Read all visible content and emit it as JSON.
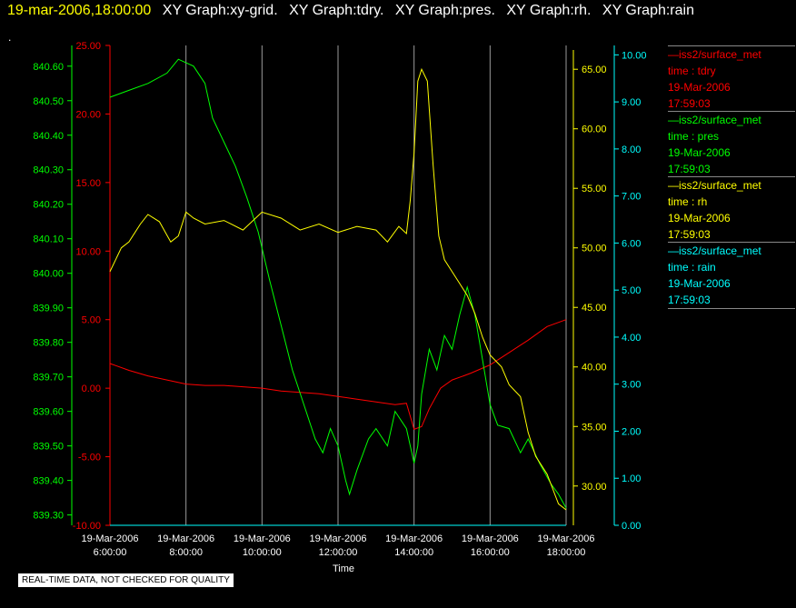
{
  "header": {
    "datetime": "19-mar-2006,18:00:00",
    "graphs": [
      "XY Graph:xy-grid.",
      "XY Graph:tdry.",
      "XY Graph:pres.",
      "XY Graph:rh.",
      "XY Graph:rain"
    ],
    "dot": "."
  },
  "legend": [
    {
      "source": "iss2/surface_met",
      "param": "time : tdry",
      "date": "19-Mar-2006",
      "time": "17:59:03",
      "color": "#ff0000"
    },
    {
      "source": "iss2/surface_met",
      "param": "time : pres",
      "date": "19-Mar-2006",
      "time": "17:59:03",
      "color": "#00ff00"
    },
    {
      "source": "iss2/surface_met",
      "param": "time : rh",
      "date": "19-Mar-2006",
      "time": "17:59:03",
      "color": "#ffff00"
    },
    {
      "source": "iss2/surface_met",
      "param": "time : rain",
      "date": "19-Mar-2006",
      "time": "17:59:03",
      "color": "#00ffff"
    }
  ],
  "notice": "REAL-TIME DATA, NOT CHECKED FOR QUALITY",
  "chart_data": {
    "type": "line",
    "xlabel": "Time",
    "x_ticks": [
      [
        "19-Mar-2006",
        "6:00:00"
      ],
      [
        "19-Mar-2006",
        "8:00:00"
      ],
      [
        "19-Mar-2006",
        "10:00:00"
      ],
      [
        "19-Mar-2006",
        "12:00:00"
      ],
      [
        "19-Mar-2006",
        "14:00:00"
      ],
      [
        "19-Mar-2006",
        "16:00:00"
      ],
      [
        "19-Mar-2006",
        "18:00:00"
      ]
    ],
    "xlim_hours": [
      6,
      18
    ],
    "grid": "vertical",
    "axes": {
      "tdry": {
        "color": "#ff0000",
        "ylim": [
          -10,
          25
        ],
        "ticks": [
          "-10.00",
          "-5.00",
          "0.00",
          "5.00",
          "10.00",
          "15.00",
          "20.00",
          "25.00"
        ]
      },
      "pres": {
        "color": "#00ff00",
        "ylim": [
          839.27,
          840.66
        ],
        "ticks": [
          "839.30",
          "839.40",
          "839.50",
          "839.60",
          "839.70",
          "839.80",
          "839.90",
          "840.00",
          "840.10",
          "840.20",
          "840.30",
          "840.40",
          "840.50",
          "840.60"
        ]
      },
      "rh": {
        "color": "#ffff00",
        "ylim": [
          26.7,
          67.0
        ],
        "ticks": [
          "30.00",
          "35.00",
          "40.00",
          "45.00",
          "50.00",
          "55.00",
          "60.00",
          "65.00"
        ]
      },
      "rain": {
        "color": "#00ffff",
        "ylim": [
          0,
          10.2
        ],
        "ticks": [
          "0.00",
          "1.00",
          "2.00",
          "3.00",
          "4.00",
          "5.00",
          "6.00",
          "7.00",
          "8.00",
          "9.00",
          "10.00"
        ]
      }
    },
    "series": [
      {
        "key": "tdry",
        "color": "#ff0000",
        "points": [
          [
            6.0,
            1.8
          ],
          [
            6.5,
            1.3
          ],
          [
            7.0,
            0.9
          ],
          [
            7.5,
            0.6
          ],
          [
            8.0,
            0.3
          ],
          [
            8.5,
            0.2
          ],
          [
            9.0,
            0.2
          ],
          [
            9.5,
            0.1
          ],
          [
            10.0,
            0.0
          ],
          [
            10.5,
            -0.2
          ],
          [
            11.0,
            -0.3
          ],
          [
            11.5,
            -0.4
          ],
          [
            12.0,
            -0.6
          ],
          [
            12.5,
            -0.8
          ],
          [
            13.0,
            -1.0
          ],
          [
            13.5,
            -1.2
          ],
          [
            13.8,
            -1.1
          ],
          [
            14.0,
            -3.0
          ],
          [
            14.2,
            -2.8
          ],
          [
            14.4,
            -1.5
          ],
          [
            14.7,
            0.0
          ],
          [
            15.0,
            0.6
          ],
          [
            15.3,
            0.9
          ],
          [
            15.5,
            1.1
          ],
          [
            16.0,
            1.7
          ],
          [
            16.5,
            2.6
          ],
          [
            17.0,
            3.5
          ],
          [
            17.5,
            4.5
          ],
          [
            18.0,
            5.0
          ]
        ]
      },
      {
        "key": "pres",
        "color": "#00ff00",
        "points": [
          [
            6.0,
            840.51
          ],
          [
            6.5,
            840.53
          ],
          [
            7.0,
            840.55
          ],
          [
            7.5,
            840.58
          ],
          [
            7.8,
            840.62
          ],
          [
            8.2,
            840.6
          ],
          [
            8.5,
            840.55
          ],
          [
            8.7,
            840.45
          ],
          [
            9.0,
            840.38
          ],
          [
            9.3,
            840.31
          ],
          [
            9.6,
            840.22
          ],
          [
            9.9,
            840.12
          ],
          [
            10.2,
            839.98
          ],
          [
            10.5,
            839.85
          ],
          [
            10.8,
            839.72
          ],
          [
            11.1,
            839.62
          ],
          [
            11.4,
            839.52
          ],
          [
            11.6,
            839.48
          ],
          [
            11.8,
            839.55
          ],
          [
            12.0,
            839.5
          ],
          [
            12.2,
            839.4
          ],
          [
            12.3,
            839.36
          ],
          [
            12.5,
            839.43
          ],
          [
            12.8,
            839.52
          ],
          [
            13.0,
            839.55
          ],
          [
            13.3,
            839.5
          ],
          [
            13.5,
            839.6
          ],
          [
            13.8,
            839.55
          ],
          [
            14.0,
            839.45
          ],
          [
            14.1,
            839.5
          ],
          [
            14.2,
            839.65
          ],
          [
            14.4,
            839.78
          ],
          [
            14.6,
            839.72
          ],
          [
            14.8,
            839.82
          ],
          [
            15.0,
            839.78
          ],
          [
            15.2,
            839.88
          ],
          [
            15.4,
            839.96
          ],
          [
            15.6,
            839.88
          ],
          [
            15.8,
            839.75
          ],
          [
            16.0,
            839.62
          ],
          [
            16.2,
            839.56
          ],
          [
            16.5,
            839.55
          ],
          [
            16.8,
            839.48
          ],
          [
            17.0,
            839.52
          ],
          [
            17.3,
            839.45
          ],
          [
            17.6,
            839.39
          ],
          [
            17.8,
            839.36
          ],
          [
            18.0,
            839.32
          ]
        ]
      },
      {
        "key": "rh",
        "color": "#ffff00",
        "points": [
          [
            6.0,
            48.0
          ],
          [
            6.3,
            50.0
          ],
          [
            6.5,
            50.5
          ],
          [
            6.8,
            52.0
          ],
          [
            7.0,
            52.8
          ],
          [
            7.3,
            52.2
          ],
          [
            7.6,
            50.5
          ],
          [
            7.8,
            51.0
          ],
          [
            8.0,
            53.0
          ],
          [
            8.2,
            52.5
          ],
          [
            8.5,
            52.0
          ],
          [
            9.0,
            52.3
          ],
          [
            9.5,
            51.5
          ],
          [
            10.0,
            53.0
          ],
          [
            10.5,
            52.5
          ],
          [
            11.0,
            51.5
          ],
          [
            11.5,
            52.0
          ],
          [
            12.0,
            51.3
          ],
          [
            12.5,
            51.8
          ],
          [
            13.0,
            51.5
          ],
          [
            13.3,
            50.5
          ],
          [
            13.6,
            51.8
          ],
          [
            13.8,
            51.2
          ],
          [
            13.9,
            54.0
          ],
          [
            14.0,
            58.0
          ],
          [
            14.1,
            64.0
          ],
          [
            14.2,
            65.0
          ],
          [
            14.35,
            64.0
          ],
          [
            14.5,
            57.0
          ],
          [
            14.65,
            51.0
          ],
          [
            14.8,
            49.0
          ],
          [
            15.0,
            48.0
          ],
          [
            15.2,
            47.0
          ],
          [
            15.4,
            46.0
          ],
          [
            15.6,
            44.5
          ],
          [
            15.8,
            42.5
          ],
          [
            16.0,
            41.0
          ],
          [
            16.3,
            40.0
          ],
          [
            16.5,
            38.5
          ],
          [
            16.8,
            37.5
          ],
          [
            17.0,
            34.5
          ],
          [
            17.2,
            32.5
          ],
          [
            17.5,
            31.0
          ],
          [
            17.8,
            28.5
          ],
          [
            18.0,
            28.0
          ]
        ]
      },
      {
        "key": "rain",
        "color": "#00ffff",
        "points": [
          [
            6.0,
            0.0
          ],
          [
            18.0,
            0.0
          ]
        ]
      }
    ]
  }
}
